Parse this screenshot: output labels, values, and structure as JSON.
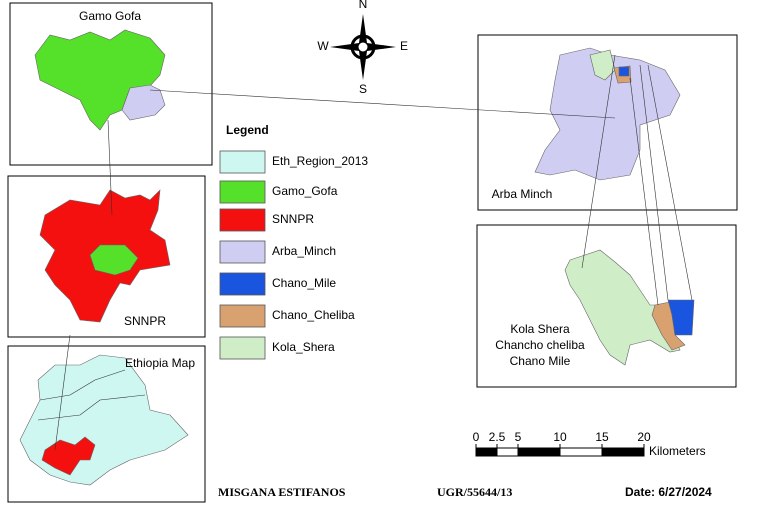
{
  "panels": [
    {
      "label": "Gamo Gofa"
    },
    {
      "label": "SNNPR"
    },
    {
      "label": "Ethiopia Map"
    },
    {
      "label": "Arba Minch"
    },
    {
      "labels": [
        "Kola Shera",
        "Chancho cheliba",
        "Chano Mile"
      ]
    }
  ],
  "compass": {
    "north": "N",
    "south": "S",
    "east": "E",
    "west": "W"
  },
  "legend": {
    "title": "Legend",
    "items": [
      {
        "name": "Eth_Region_2013",
        "color": "#cff7f2"
      },
      {
        "name": "Gamo_Gofa",
        "color": "#55e02a"
      },
      {
        "name": "SNNPR",
        "color": "#f51010"
      },
      {
        "name": "Arba_Minch",
        "color": "#cfcdf2"
      },
      {
        "name": "Chano_Mile",
        "color": "#1a55e0"
      },
      {
        "name": "Chano_Cheliba",
        "color": "#d9a070"
      },
      {
        "name": "Kola_Shera",
        "color": "#cfeec8"
      }
    ]
  },
  "scale_bar": {
    "ticks": [
      0,
      2.5,
      5,
      10,
      15,
      20
    ],
    "unit": "Kilometers"
  },
  "footer": {
    "author": "MISGANA ESTIFANOS",
    "id": "UGR/55644/13",
    "date": "Date: 6/27/2024"
  }
}
